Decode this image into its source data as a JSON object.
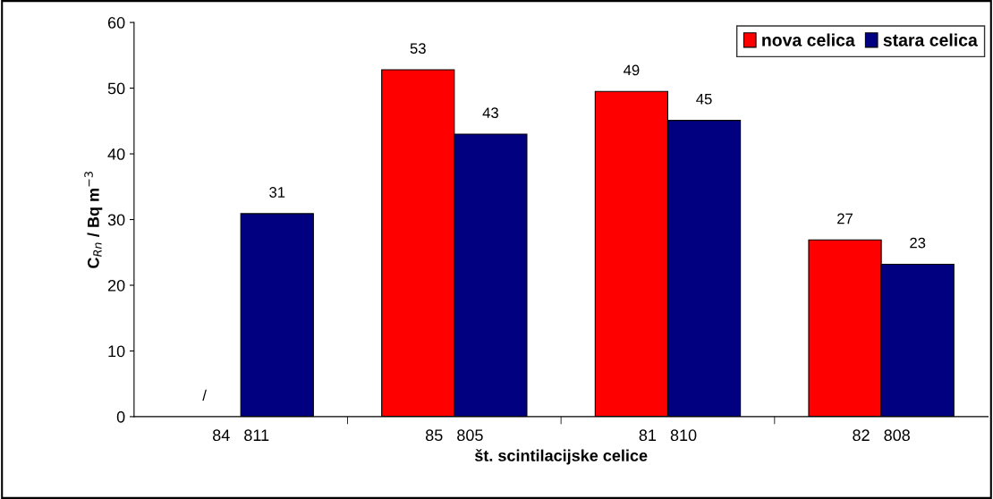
{
  "chart_data": {
    "type": "bar",
    "xlabel": "št. scintilacijske celice",
    "ylabel": "C$_{Rn}$ / Bq m$^{−3}$",
    "categories": [
      "84   811",
      "85   805",
      "81   810",
      "82   808"
    ],
    "series": [
      {
        "name": "nova celica",
        "color": "#ff0000",
        "values": [
          null,
          52.8,
          49.5,
          26.9
        ],
        "value_labels": [
          "/",
          "53",
          "49",
          "27"
        ]
      },
      {
        "name": "stara celica",
        "color": "#000080",
        "values": [
          30.9,
          43.0,
          45.1,
          23.2
        ],
        "value_labels": [
          "31",
          "43",
          "45",
          "23"
        ]
      }
    ],
    "ylim": [
      0,
      60
    ],
    "yticks": [
      0,
      10,
      20,
      30,
      40,
      50,
      60
    ],
    "grid": false,
    "legend": "top right"
  }
}
